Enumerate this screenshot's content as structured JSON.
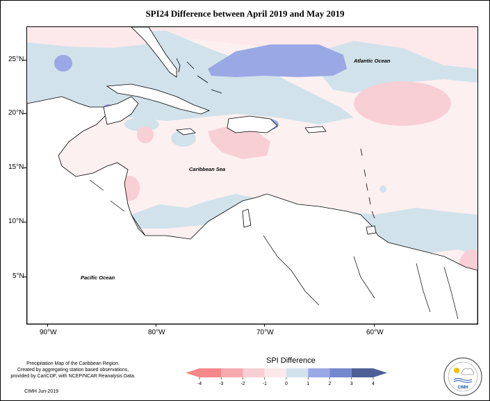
{
  "title": "SPI24 Difference between April 2019 and May 2019",
  "map": {
    "labels": {
      "atlantic": "Atlantic Ocean",
      "caribbean": "Caribbean Sea",
      "pacific": "Pacific Ocean"
    },
    "lat_ticks": [
      "25°N",
      "20°N",
      "15°N",
      "10°N",
      "5°N"
    ],
    "lon_ticks": [
      "90°W",
      "80°W",
      "70°W",
      "60°W"
    ]
  },
  "legend": {
    "title": "SPI Difference",
    "ticks": [
      "-4",
      "-3",
      "-2",
      "-1",
      "0",
      "1",
      "2",
      "3",
      "4"
    ],
    "colors": [
      "#f4888a",
      "#f5aaad",
      "#f8cfd5",
      "#fce7ea",
      "#d1e2eb",
      "#9aa8e6",
      "#7488cc",
      "#4f5f96"
    ]
  },
  "footer": {
    "line1": "Precipitation Map of the Caribbean Region.",
    "line2": "Created by aggregating station based observations,",
    "line3": "provided by CariCOF, with NCEP/NCAR Reanalysis Data.",
    "credit": "CIMH Jun-2019"
  },
  "logo": {
    "text": "CIMH"
  }
}
